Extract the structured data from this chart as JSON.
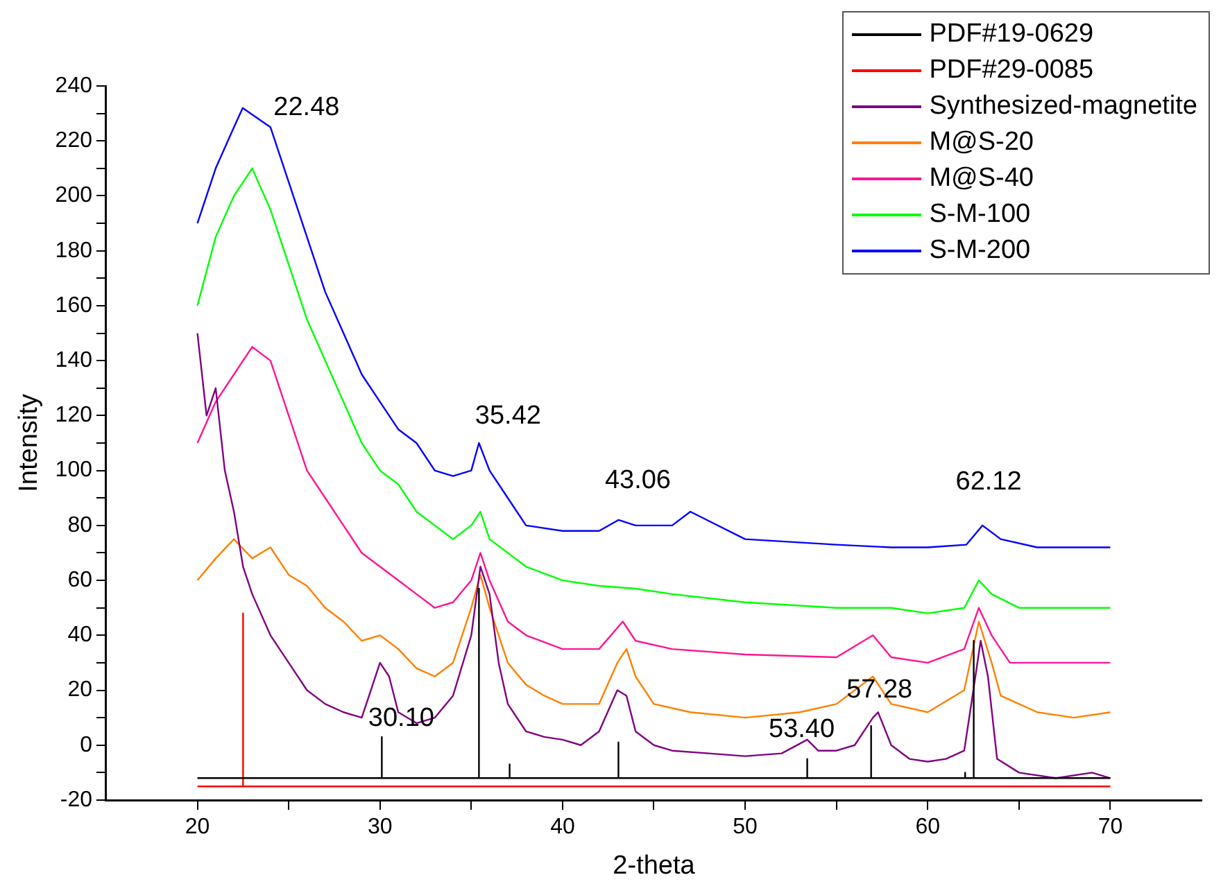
{
  "chart_data": {
    "type": "line",
    "xlabel": "2-theta",
    "ylabel": "Intensity",
    "xlim": [
      15,
      75
    ],
    "xticks": [
      20,
      {
        "value": 25,
        "label": null
      },
      30,
      {
        "value": 35,
        "label": null
      },
      40,
      {
        "value": 45,
        "label": null
      },
      50,
      {
        "value": 55,
        "label": null
      },
      60,
      {
        "value": 65,
        "label": null
      },
      70
    ],
    "ylim": [
      -20,
      240
    ],
    "yticks": [
      -20,
      {
        "value": -10,
        "label": null
      },
      0,
      {
        "value": 10,
        "label": null
      },
      20,
      {
        "value": 30,
        "label": null
      },
      40,
      {
        "value": 50,
        "label": null
      },
      60,
      {
        "value": 70,
        "label": null
      },
      80,
      {
        "value": 90,
        "label": null
      },
      100,
      {
        "value": 110,
        "label": null
      },
      120,
      {
        "value": 130,
        "label": null
      },
      140,
      {
        "value": 150,
        "label": null
      },
      160,
      {
        "value": 170,
        "label": null
      },
      180,
      {
        "value": 190,
        "label": null
      },
      200,
      {
        "value": 210,
        "label": null
      },
      220,
      {
        "value": 230,
        "label": null
      },
      240
    ],
    "grid": false,
    "legend": "top right",
    "marker": "none",
    "line_style": "solid",
    "series": [
      {
        "name": "PDF#19-0629",
        "color": "#000000",
        "x": [
          20,
          30.1,
          30.1,
          30.1,
          35.42,
          35.42,
          35.42,
          37.1,
          37.1,
          37.1,
          43.06,
          43.06,
          43.06,
          53.4,
          53.4,
          53.4,
          56.9,
          56.9,
          56.9,
          62.05,
          62.05,
          62.05,
          62.52,
          62.52,
          62.52,
          70
        ],
        "values": [
          -12,
          -12,
          3,
          -12,
          -12,
          57,
          -12,
          -12,
          -7,
          -12,
          -12,
          1,
          -12,
          -12,
          -5,
          -12,
          -12,
          7,
          -12,
          -12,
          -10,
          -12,
          -12,
          38,
          -12,
          -12
        ]
      },
      {
        "name": "PDF#29-0085",
        "color": "#ff0000",
        "x": [
          20,
          22.5,
          22.5,
          22.5,
          70
        ],
        "values": [
          -15,
          -15,
          48,
          -15,
          -15
        ]
      },
      {
        "name": "Synthesized-magnetite",
        "color": "#800080",
        "x": [
          20,
          20.5,
          21,
          21.5,
          22,
          22.5,
          23,
          24,
          25,
          26,
          27,
          28,
          29,
          29.5,
          30,
          30.5,
          31,
          32,
          33,
          34,
          35,
          35.5,
          36,
          36.5,
          37,
          38,
          39,
          40,
          41,
          42,
          43,
          43.5,
          44,
          45,
          46,
          48,
          50,
          52,
          53.4,
          54,
          55,
          56,
          57,
          57.28,
          58,
          59,
          60,
          61,
          62,
          62.5,
          62.9,
          63.3,
          63.8,
          65,
          67,
          69,
          70
        ],
        "values": [
          150,
          120,
          130,
          100,
          85,
          65,
          55,
          40,
          30,
          20,
          15,
          12,
          10,
          20,
          30,
          25,
          12,
          8,
          10,
          18,
          40,
          65,
          55,
          30,
          15,
          5,
          3,
          2,
          0,
          5,
          20,
          18,
          5,
          0,
          -2,
          -3,
          -4,
          -3,
          2,
          -2,
          -2,
          0,
          10,
          12,
          0,
          -5,
          -6,
          -5,
          -2,
          20,
          38,
          25,
          -5,
          -10,
          -12,
          -10,
          -12
        ]
      },
      {
        "name": "M@S-20",
        "color": "#ff8000",
        "x": [
          20,
          21,
          22,
          23,
          24,
          25,
          26,
          27,
          28,
          29,
          30,
          31,
          32,
          33,
          34,
          35,
          35.5,
          36,
          37,
          38,
          39,
          40,
          42,
          43,
          43.5,
          44,
          45,
          47,
          50,
          53,
          55,
          57,
          58,
          60,
          62,
          62.8,
          63.5,
          64,
          66,
          68,
          70
        ],
        "values": [
          60,
          68,
          75,
          68,
          72,
          62,
          58,
          50,
          45,
          38,
          40,
          35,
          28,
          25,
          30,
          50,
          62,
          50,
          30,
          22,
          18,
          15,
          15,
          30,
          35,
          25,
          15,
          12,
          10,
          12,
          15,
          25,
          15,
          12,
          20,
          45,
          30,
          18,
          12,
          10,
          12
        ]
      },
      {
        "name": "M@S-40",
        "color": "#ff1493",
        "x": [
          20,
          21,
          22,
          23,
          24,
          25,
          26,
          27,
          28,
          29,
          30,
          31,
          32,
          33,
          34,
          35,
          35.5,
          36,
          37,
          38,
          40,
          42,
          43.3,
          44,
          46,
          50,
          55,
          57,
          58,
          60,
          62,
          62.8,
          63.5,
          64.5,
          67,
          70
        ],
        "values": [
          110,
          125,
          135,
          145,
          140,
          120,
          100,
          90,
          80,
          70,
          65,
          60,
          55,
          50,
          52,
          60,
          70,
          60,
          45,
          40,
          35,
          35,
          45,
          38,
          35,
          33,
          32,
          40,
          32,
          30,
          35,
          50,
          40,
          30,
          30,
          30
        ]
      },
      {
        "name": "S-M-100",
        "color": "#00ff00",
        "x": [
          20,
          21,
          22,
          23,
          24,
          25,
          26,
          27,
          28,
          29,
          30,
          31,
          32,
          33,
          34,
          35,
          35.5,
          36,
          38,
          40,
          42,
          44,
          46,
          50,
          55,
          58,
          60,
          62,
          62.8,
          63.5,
          65,
          70
        ],
        "values": [
          160,
          185,
          200,
          210,
          195,
          175,
          155,
          140,
          125,
          110,
          100,
          95,
          85,
          80,
          75,
          80,
          85,
          75,
          65,
          60,
          58,
          57,
          55,
          52,
          50,
          50,
          48,
          50,
          60,
          55,
          50,
          50
        ]
      },
      {
        "name": "S-M-200",
        "color": "#0000ff",
        "x": [
          20,
          21,
          22,
          22.48,
          24,
          25,
          26,
          27,
          28,
          29,
          30,
          31,
          32,
          33,
          34,
          35,
          35.42,
          36,
          37,
          38,
          40,
          42,
          43.06,
          44,
          46,
          47,
          50,
          55,
          58,
          60,
          62.12,
          63,
          64,
          66,
          70
        ],
        "values": [
          190,
          210,
          225,
          232,
          225,
          205,
          185,
          165,
          150,
          135,
          125,
          115,
          110,
          100,
          98,
          100,
          110,
          100,
          90,
          80,
          78,
          78,
          82,
          80,
          80,
          85,
          75,
          73,
          72,
          72,
          73,
          80,
          75,
          72,
          72
        ]
      }
    ],
    "annotations": [
      {
        "text": "22.48",
        "x": 22.48,
        "y": 232
      },
      {
        "text": "35.42",
        "x": 35.42,
        "y": 110
      },
      {
        "text": "43.06",
        "x": 43.06,
        "y": 82
      },
      {
        "text": "62.12",
        "x": 62.12,
        "y": 73
      },
      {
        "text": "30.10",
        "x": 30.1,
        "y": 3
      },
      {
        "text": "53.40",
        "x": 53.4,
        "y": -5
      },
      {
        "text": "57.28",
        "x": 57.28,
        "y": 12
      }
    ]
  }
}
